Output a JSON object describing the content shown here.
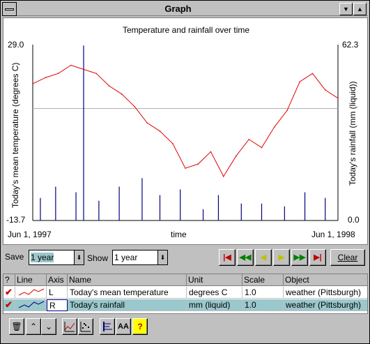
{
  "window": {
    "title": "Graph",
    "minimize_glyph": "▼",
    "maximize_glyph": "▲"
  },
  "chart_data": {
    "type": "line",
    "title": "Temperature and rainfall over time",
    "xlabel": "time",
    "x_start_label": "Jun 1, 1997",
    "x_end_label": "Jun 1, 1998",
    "left_axis": {
      "label": "Today's mean temperature (degrees C)",
      "max_label": "29.0",
      "min_label": "-13.7",
      "range": [
        -13.7,
        29.0
      ]
    },
    "right_axis": {
      "label": "Today's rainfall (mm (liquid))",
      "max_label": "62.3",
      "min_label": "0.0",
      "range": [
        0.0,
        62.3
      ]
    },
    "series": [
      {
        "name": "Today's mean temperature",
        "axis": "L",
        "color": "#e00000",
        "x_month_offsets": [
          0,
          0.5,
          1,
          1.5,
          2,
          2.5,
          3,
          3.5,
          4,
          4.5,
          5,
          5.5,
          6,
          6.5,
          7,
          7.5,
          8,
          8.5,
          9,
          9.5,
          10,
          10.5,
          11,
          11.5,
          12
        ],
        "values": [
          19.5,
          21,
          22,
          24,
          23,
          22,
          19,
          17,
          14,
          10,
          8,
          5,
          -1,
          0,
          3,
          -3,
          2,
          6,
          4,
          9,
          13,
          20,
          22,
          18,
          16
        ]
      },
      {
        "name": "Today's rainfall",
        "axis": "R",
        "color": "#000080",
        "x_month_offsets": [
          0.3,
          0.9,
          1.7,
          2.0,
          2.6,
          3.4,
          4.3,
          5.0,
          5.8,
          6.7,
          7.3,
          8.2,
          9.0,
          9.9,
          10.7,
          11.5
        ],
        "values": [
          8,
          12,
          10,
          62,
          7,
          12,
          15,
          9,
          11,
          4,
          9,
          6,
          6,
          5,
          10,
          8
        ]
      }
    ],
    "reference_line_value_left": 13.5,
    "grid": false
  },
  "controls": {
    "save_label": "Save",
    "save_value": "1 year",
    "show_label": "Show",
    "show_value": "1 year",
    "clear_label": "Clear",
    "dropdown_glyph": "⬇"
  },
  "nav_buttons": [
    {
      "name": "first-icon",
      "glyph": "|◀",
      "color": "#c00000"
    },
    {
      "name": "rewind-fast-icon",
      "glyph": "◀◀",
      "color": "#008000"
    },
    {
      "name": "step-back-icon",
      "glyph": "◀",
      "color": "#c0c000"
    },
    {
      "name": "step-forward-icon",
      "glyph": "▶",
      "color": "#c0c000"
    },
    {
      "name": "forward-fast-icon",
      "glyph": "▶▶",
      "color": "#008000"
    },
    {
      "name": "last-icon",
      "glyph": "▶|",
      "color": "#c00000"
    }
  ],
  "table": {
    "headers": [
      "?",
      "Line",
      "Axis",
      "Name",
      "Unit",
      "Scale",
      "Object"
    ],
    "rows": [
      {
        "axis": "L",
        "name": "Today's mean temperature",
        "unit": "degrees C",
        "scale": "1.0",
        "object": "weather (Pittsburgh)",
        "line_color": "#e00000",
        "selected": false
      },
      {
        "axis": "R",
        "name": "Today's rainfall",
        "unit": "mm (liquid)",
        "scale": "1.0",
        "object": "weather (Pittsburgh)",
        "line_color": "#000080",
        "selected": true
      }
    ],
    "check_glyph": "✔"
  },
  "toolbar": {
    "delete_glyph": "🗑",
    "up_glyph": "⌃",
    "down_glyph": "⌄",
    "help_glyph": "?",
    "font_glyph": "AA"
  }
}
